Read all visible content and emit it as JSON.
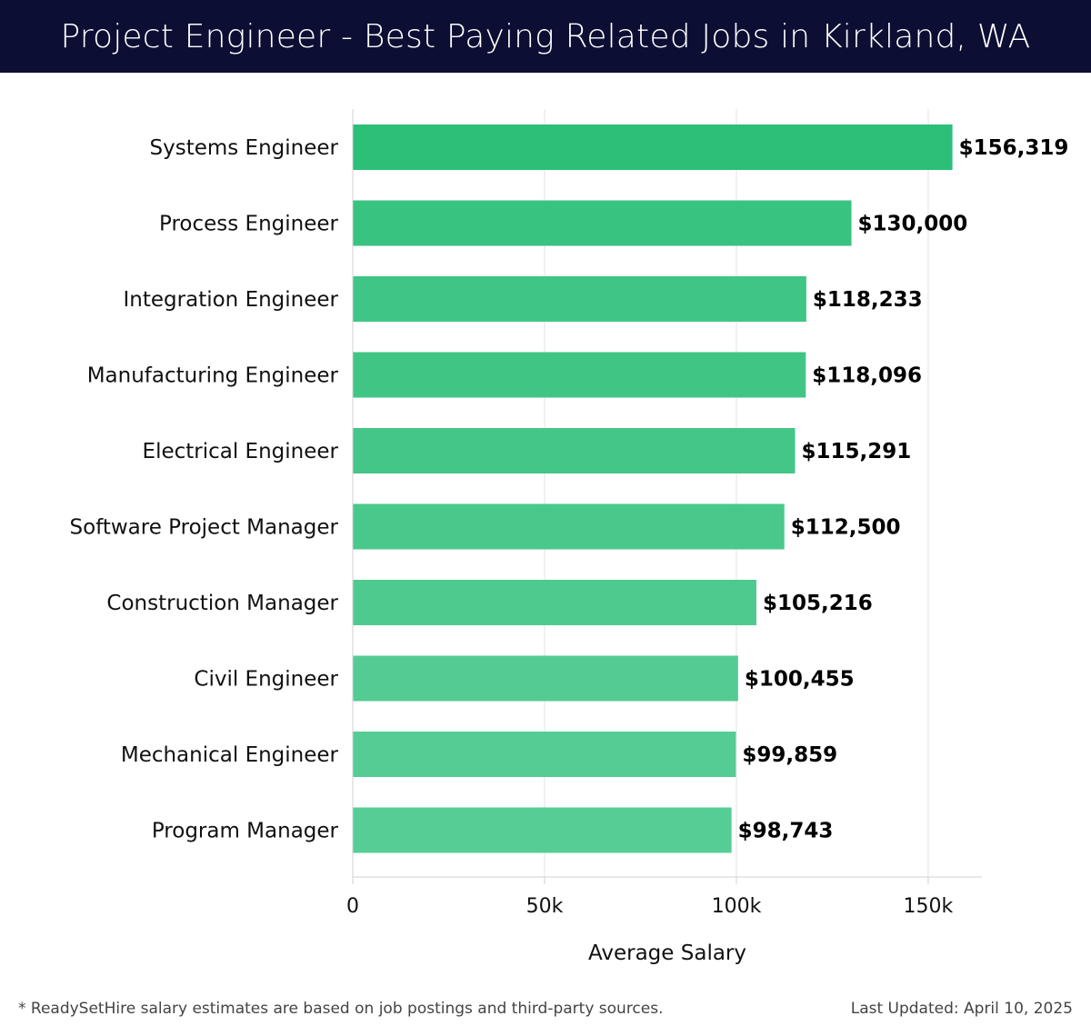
{
  "header": {
    "title": "Project Engineer - Best Paying Related Jobs in Kirkland, WA"
  },
  "chart_data": {
    "type": "bar",
    "orientation": "horizontal",
    "title": "Project Engineer - Best Paying Related Jobs in Kirkland, WA",
    "xlabel": "Average Salary",
    "ylabel": "",
    "categories": [
      "Systems Engineer",
      "Process Engineer",
      "Integration Engineer",
      "Manufacturing Engineer",
      "Electrical Engineer",
      "Software Project Manager",
      "Construction Manager",
      "Civil Engineer",
      "Mechanical Engineer",
      "Program Manager"
    ],
    "values": [
      156319,
      130000,
      118233,
      118096,
      115291,
      112500,
      105216,
      100455,
      99859,
      98743
    ],
    "value_labels": [
      "$156,319",
      "$130,000",
      "$118,233",
      "$118,096",
      "$115,291",
      "$112,500",
      "$105,216",
      "$100,455",
      "$99,859",
      "$98,743"
    ],
    "xlim": [
      0,
      164000
    ],
    "x_ticks": [
      0,
      50000,
      100000,
      150000
    ],
    "x_tick_labels": [
      "0",
      "50k",
      "100k",
      "150k"
    ],
    "grid": true,
    "bar_colors": [
      "#2bbf78",
      "#38c381",
      "#3fc585",
      "#40c585",
      "#44c688",
      "#49c88b",
      "#4fca8f",
      "#54cb93",
      "#55cc94",
      "#56cd95"
    ]
  },
  "footer": {
    "note": "* ReadySetHire salary estimates are based on job postings and third-party sources.",
    "updated": "Last Updated: April 10, 2025"
  }
}
